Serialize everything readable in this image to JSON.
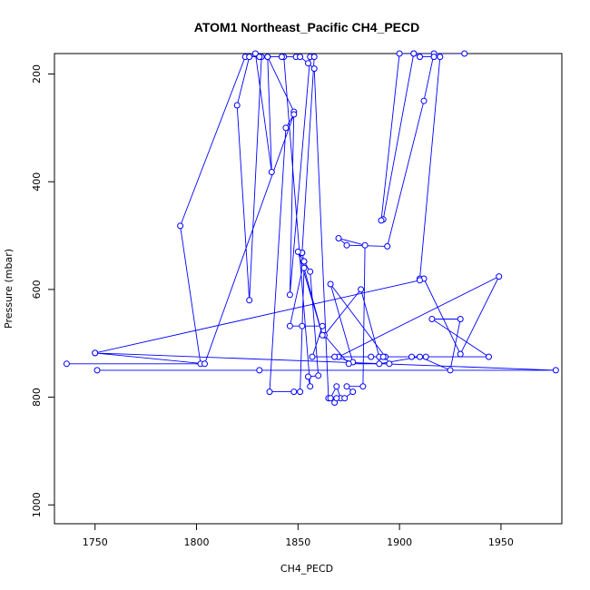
{
  "chart_data": {
    "type": "line",
    "title": "ATOM1 Northeast_Pacific CH4_PECD",
    "xlabel": "CH4_PECD",
    "ylabel": "Pressure (mbar)",
    "xlim": [
      1730,
      1980
    ],
    "ylim": [
      1035,
      162
    ],
    "y_reversed": true,
    "x_ticks": [
      1750,
      1800,
      1850,
      1900,
      1950
    ],
    "y_ticks": [
      200,
      400,
      600,
      800,
      1000
    ],
    "grid": false,
    "legend": "none",
    "color": "#0000ff",
    "series": [
      {
        "x": [
          1736,
          1802,
          1792,
          1824,
          1832,
          1826,
          1820,
          1826,
          1829,
          1837,
          1835,
          1848,
          1846,
          1856,
          1858,
          1852,
          1852,
          1853,
          1856,
          1860,
          1855,
          1856,
          1843,
          1835,
          1831,
          1842,
          1849,
          1851,
          1855,
          1858,
          1865,
          1871,
          1869,
          1866,
          1868,
          1869,
          1873,
          1877,
          1874,
          1882,
          1883,
          1870,
          1874,
          1894,
          1912,
          1917,
          1932,
          1907,
          1892,
          1891,
          1900,
          1907,
          1910,
          1917,
          1920,
          1910,
          1912,
          1930,
          1949,
          1870,
          1868,
          1877,
          1866,
          1893,
          1895,
          1875,
          1863,
          1881,
          1890,
          1890,
          1910,
          1925,
          1930,
          1916,
          1944,
          1913,
          1906,
          1892,
          1886,
          1857,
          1862,
          1852,
          1846,
          1853,
          1850,
          1862,
          1853,
          1851,
          1848,
          1836,
          1844,
          1848,
          1804,
          1750,
          1910,
          1750,
          1977,
          1751,
          1831
        ]
      }
    ],
    "y_values": [
      738,
      738,
      482,
      168,
      168,
      620,
      258,
      168,
      162,
      382,
      168,
      270,
      610,
      168,
      168,
      532,
      532,
      548,
      567,
      760,
      762,
      780,
      168,
      168,
      168,
      168,
      168,
      168,
      180,
      190,
      802,
      802,
      780,
      802,
      810,
      802,
      802,
      790,
      780,
      780,
      518,
      505,
      518,
      520,
      250,
      162,
      162,
      162,
      470,
      472,
      162,
      162,
      168,
      168,
      168,
      580,
      580,
      720,
      576,
      725,
      725,
      735,
      590,
      725,
      738,
      738,
      685,
      600,
      725,
      738,
      725,
      750,
      655,
      655,
      725,
      725,
      725,
      725,
      725,
      725,
      668,
      668,
      668,
      548,
      530,
      685,
      560,
      790,
      790,
      790,
      300,
      275,
      738,
      718,
      583,
      718,
      750,
      750,
      750
    ]
  }
}
